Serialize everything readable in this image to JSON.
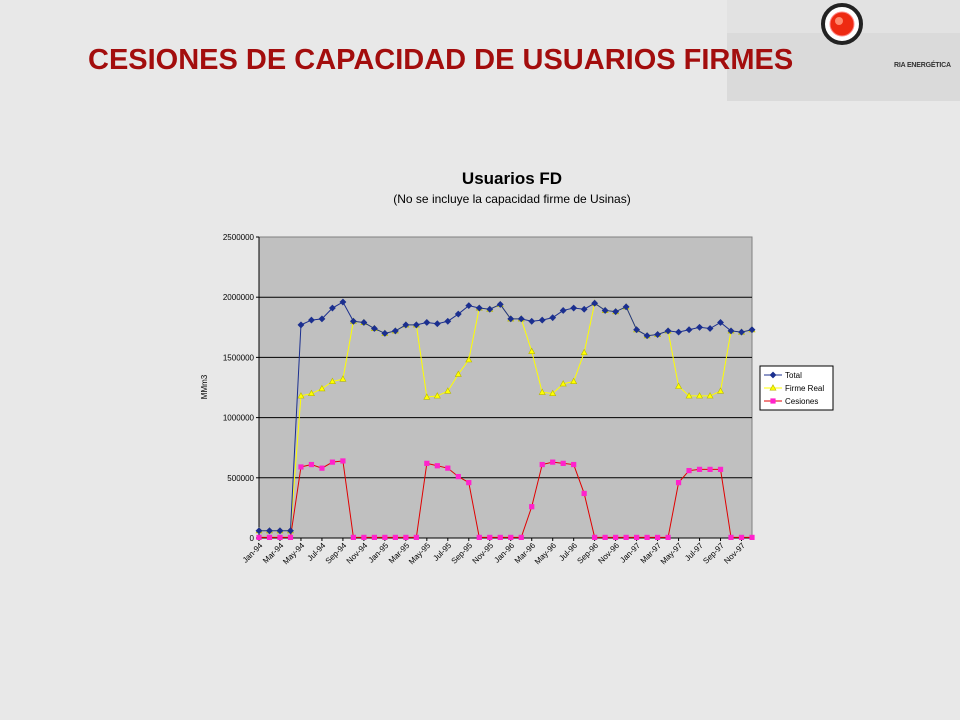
{
  "slide": {
    "title": "CESIONES DE CAPACIDAD DE USUARIOS FIRMES",
    "logo_text": "RIA ENERGÉTICA"
  },
  "colors": {
    "title": "#a30d0d",
    "plot_bg": "#c0c0c0",
    "total": "#1b2f8f",
    "firme": "#ffff00",
    "firme_marker_stroke": "#b8b800",
    "cesiones_line": "#e00000",
    "cesiones_marker": "#ff22cc"
  },
  "chart_data": {
    "type": "line",
    "title": "Usuarios FD",
    "subtitle": "(No se incluye la capacidad firme de Usinas)",
    "ylabel": "MMm3",
    "xlabel": "",
    "ylim": [
      0,
      2500000
    ],
    "yticks": [
      0,
      500000,
      1000000,
      1500000,
      2000000,
      2500000
    ],
    "grid": "horizontal",
    "legend": "right",
    "x": [
      "Jan-94",
      "Feb-94",
      "Mar-94",
      "Apr-94",
      "May-94",
      "Jun-94",
      "Jul-94",
      "Aug-94",
      "Sep-94",
      "Oct-94",
      "Nov-94",
      "Dec-94",
      "Jan-95",
      "Feb-95",
      "Mar-95",
      "Apr-95",
      "May-95",
      "Jun-95",
      "Jul-95",
      "Aug-95",
      "Sep-95",
      "Oct-95",
      "Nov-95",
      "Dec-95",
      "Jan-96",
      "Feb-96",
      "Mar-96",
      "Apr-96",
      "May-96",
      "Jun-96",
      "Jul-96",
      "Aug-96",
      "Sep-96",
      "Oct-96",
      "Nov-96",
      "Dec-96",
      "Jan-97",
      "Feb-97",
      "Mar-97",
      "Apr-97",
      "May-97",
      "Jun-97",
      "Jul-97",
      "Aug-97",
      "Sep-97",
      "Oct-97",
      "Nov-97",
      "Dec-97"
    ],
    "xtick_labels": [
      "Jan-94",
      "Mar-94",
      "May-94",
      "Jul-94",
      "Sep-94",
      "Nov-94",
      "Jan-95",
      "Mar-95",
      "May-95",
      "Jul-95",
      "Sep-95",
      "Nov-95",
      "Jan-96",
      "Mar-96",
      "May-96",
      "Jul-96",
      "Sep-96",
      "Nov-96",
      "Jan-97",
      "Mar-97",
      "May-97",
      "Jul-97",
      "Sep-97",
      "Nov-97"
    ],
    "series": [
      {
        "name": "Total",
        "values": [
          60000,
          60000,
          60000,
          60000,
          1770000,
          1810000,
          1820000,
          1910000,
          1960000,
          1800000,
          1790000,
          1740000,
          1700000,
          1720000,
          1770000,
          1770000,
          1790000,
          1780000,
          1800000,
          1860000,
          1930000,
          1910000,
          1900000,
          1940000,
          1820000,
          1820000,
          1800000,
          1810000,
          1830000,
          1890000,
          1910000,
          1900000,
          1950000,
          1890000,
          1880000,
          1920000,
          1730000,
          1680000,
          1690000,
          1720000,
          1710000,
          1730000,
          1750000,
          1740000,
          1790000,
          1720000,
          1710000,
          1730000
        ]
      },
      {
        "name": "Firme Real",
        "values": [
          60000,
          60000,
          60000,
          60000,
          1180000,
          1200000,
          1240000,
          1300000,
          1320000,
          1800000,
          1790000,
          1740000,
          1700000,
          1720000,
          1770000,
          1770000,
          1170000,
          1180000,
          1220000,
          1360000,
          1480000,
          1910000,
          1900000,
          1940000,
          1820000,
          1820000,
          1550000,
          1210000,
          1200000,
          1280000,
          1300000,
          1540000,
          1950000,
          1890000,
          1880000,
          1920000,
          1730000,
          1680000,
          1690000,
          1720000,
          1260000,
          1180000,
          1180000,
          1180000,
          1220000,
          1720000,
          1710000,
          1730000
        ]
      },
      {
        "name": "Cesiones",
        "values": [
          5000,
          5000,
          5000,
          5000,
          590000,
          610000,
          580000,
          630000,
          640000,
          5000,
          5000,
          5000,
          5000,
          5000,
          5000,
          5000,
          620000,
          600000,
          580000,
          510000,
          460000,
          5000,
          5000,
          5000,
          5000,
          5000,
          260000,
          610000,
          630000,
          620000,
          610000,
          370000,
          5000,
          5000,
          5000,
          5000,
          5000,
          5000,
          5000,
          5000,
          460000,
          560000,
          570000,
          570000,
          570000,
          5000,
          5000,
          5000
        ]
      }
    ]
  }
}
